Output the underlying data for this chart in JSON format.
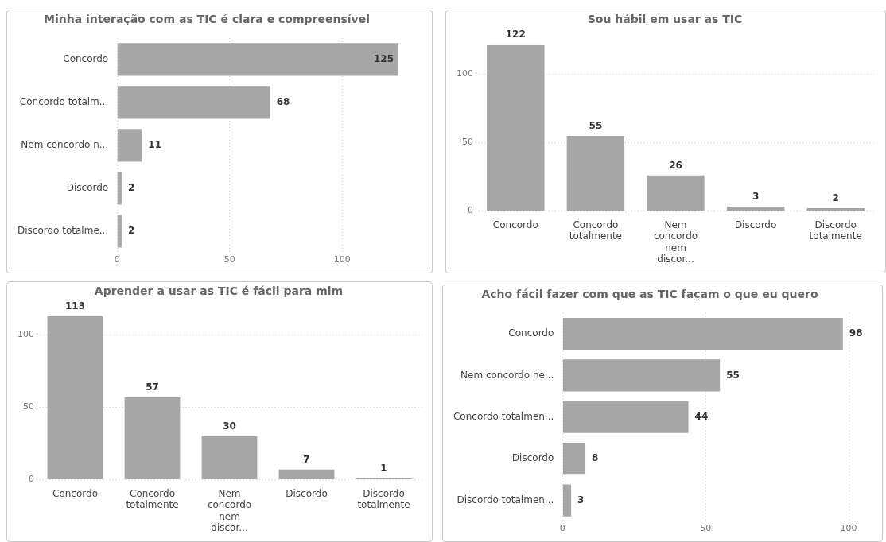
{
  "chart_data": [
    {
      "type": "bar",
      "orientation": "horizontal",
      "title": "Minha interação com as TIC é clara e compreensível",
      "categories": [
        "Concordo",
        "Concordo totalm...",
        "Nem concordo n...",
        "Discordo",
        "Discordo totalme..."
      ],
      "values": [
        125,
        68,
        11,
        2,
        2
      ],
      "color": "#a6a6a6",
      "xlim": [
        0,
        125
      ],
      "xticks": [
        0,
        50,
        100
      ],
      "grid": "x",
      "data_labels": true
    },
    {
      "type": "bar",
      "title": "Sou hábil em usar as TIC",
      "categories": [
        "Concordo",
        "Concordo totalmente",
        "Nem concordo nem discor...",
        "Discordo",
        "Discordo totalmente"
      ],
      "values": [
        122,
        55,
        26,
        3,
        2
      ],
      "color": "#a6a6a6",
      "ylim": [
        0,
        122
      ],
      "yticks": [
        0,
        50,
        100
      ],
      "grid": "y",
      "data_labels": true
    },
    {
      "type": "bar",
      "title": "Aprender a usar as TIC é fácil para mim",
      "categories": [
        "Concordo",
        "Concordo totalmente",
        "Nem concordo nem discor...",
        "Discordo",
        "Discordo totalmente"
      ],
      "values": [
        113,
        57,
        30,
        7,
        1
      ],
      "color": "#a6a6a6",
      "ylim": [
        0,
        113
      ],
      "yticks": [
        0,
        50,
        100
      ],
      "grid": "y",
      "data_labels": true
    },
    {
      "type": "bar",
      "orientation": "horizontal",
      "title": "Acho fácil fazer com que as TIC façam o que eu quero",
      "categories": [
        "Concordo",
        "Nem concordo ne...",
        "Concordo totalmen...",
        "Discordo",
        "Discordo totalmen..."
      ],
      "values": [
        98,
        55,
        44,
        8,
        3
      ],
      "color": "#a6a6a6",
      "xlim": [
        0,
        100
      ],
      "xticks": [
        0,
        50,
        100
      ],
      "grid": "x",
      "data_labels": true
    }
  ]
}
